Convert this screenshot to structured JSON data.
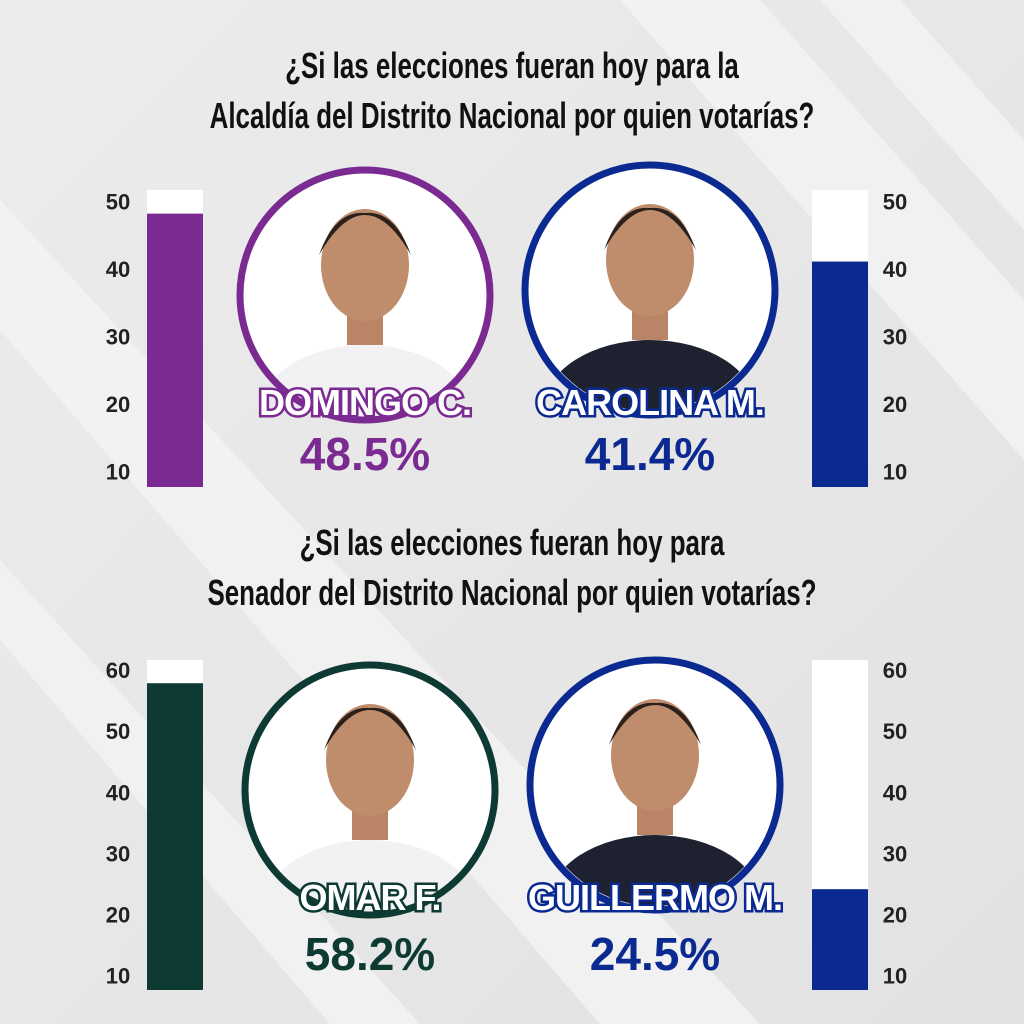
{
  "chart_data": [
    {
      "type": "gauge",
      "title": [
        "¿Si las elecciones fueran hoy para la",
        "Alcaldía del Distrito Nacional por quien votarías?"
      ],
      "series": [
        {
          "name": "DOMINGO C.",
          "color": "#7a2a91",
          "values": [
            48.5
          ],
          "value_labels": [
            "48.5%"
          ]
        },
        {
          "name": "CAROLINA M.",
          "color": "#0b2a91",
          "values": [
            41.4
          ],
          "value_labels": [
            "41.4%"
          ]
        }
      ],
      "ylim": [
        8,
        52
      ],
      "yticks": [
        10,
        20,
        30,
        40,
        50
      ]
    },
    {
      "type": "gauge",
      "title": [
        "¿Si las elecciones fueran hoy para",
        "Senador del Distrito Nacional por quien votarías?"
      ],
      "series": [
        {
          "name": "OMAR F.",
          "color": "#0d3a32",
          "values": [
            58.2
          ],
          "value_labels": [
            "58.2%"
          ]
        },
        {
          "name": "GUILLERMO M.",
          "color": "#0b2a91",
          "values": [
            24.5
          ],
          "value_labels": [
            "24.5%"
          ]
        }
      ],
      "ylim": [
        8,
        62
      ],
      "yticks": [
        10,
        20,
        30,
        40,
        50,
        60
      ]
    }
  ]
}
